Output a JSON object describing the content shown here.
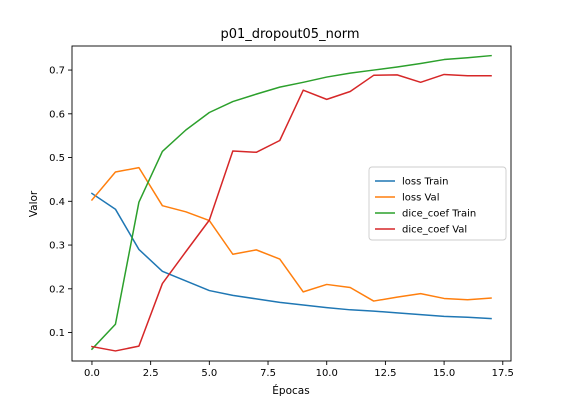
{
  "chart_data": {
    "type": "line",
    "title": "p01_dropout05_norm",
    "xlabel": "Épocas",
    "ylabel": "Valor",
    "xlim": [
      -0.85,
      17.85
    ],
    "ylim": [
      0.035,
      0.755
    ],
    "x_ticks": [
      0.0,
      2.5,
      5.0,
      7.5,
      10.0,
      12.5,
      15.0,
      17.5
    ],
    "x_tick_labels": [
      "0.0",
      "2.5",
      "5.0",
      "7.5",
      "10.0",
      "12.5",
      "15.0",
      "17.5"
    ],
    "y_ticks": [
      0.1,
      0.2,
      0.3,
      0.4,
      0.5,
      0.6,
      0.7
    ],
    "y_tick_labels": [
      "0.1",
      "0.2",
      "0.3",
      "0.4",
      "0.5",
      "0.6",
      "0.7"
    ],
    "grid": false,
    "legend_position": "center-right",
    "x": [
      0,
      1,
      2,
      3,
      4,
      5,
      6,
      7,
      8,
      9,
      10,
      11,
      12,
      13,
      14,
      15,
      16,
      17
    ],
    "series": [
      {
        "name": "loss Train",
        "color": "#1f77b4",
        "values": [
          0.418,
          0.382,
          0.29,
          0.24,
          0.218,
          0.196,
          0.185,
          0.177,
          0.169,
          0.163,
          0.157,
          0.152,
          0.149,
          0.145,
          0.141,
          0.137,
          0.135,
          0.132
        ]
      },
      {
        "name": "loss Val",
        "color": "#ff7f0e",
        "values": [
          0.403,
          0.467,
          0.477,
          0.39,
          0.376,
          0.356,
          0.279,
          0.289,
          0.268,
          0.193,
          0.21,
          0.203,
          0.172,
          0.181,
          0.189,
          0.178,
          0.175,
          0.179
        ]
      },
      {
        "name": "dice_coef Train",
        "color": "#2ca02c",
        "values": [
          0.062,
          0.119,
          0.398,
          0.514,
          0.563,
          0.603,
          0.628,
          0.645,
          0.661,
          0.672,
          0.684,
          0.693,
          0.7,
          0.707,
          0.715,
          0.724,
          0.728,
          0.733
        ]
      },
      {
        "name": "dice_coef Val",
        "color": "#d62728",
        "values": [
          0.068,
          0.058,
          0.069,
          0.212,
          0.285,
          0.357,
          0.515,
          0.512,
          0.539,
          0.654,
          0.633,
          0.651,
          0.688,
          0.689,
          0.672,
          0.69,
          0.687,
          0.687
        ]
      }
    ]
  }
}
